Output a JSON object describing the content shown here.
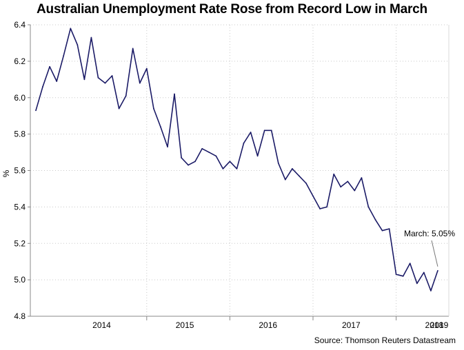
{
  "chart_data": {
    "type": "line",
    "title": "Australian Unemployment Rate Rose from Record Low in March",
    "ylabel": "%",
    "xlabel": "",
    "ylim": [
      4.8,
      6.4
    ],
    "yticks": [
      "4.8",
      "5.0",
      "5.2",
      "5.4",
      "5.6",
      "5.8",
      "6.0",
      "6.2",
      "6.4"
    ],
    "xticks": [
      "2014",
      "2015",
      "2016",
      "2017",
      "2018",
      "2019"
    ],
    "grid": true,
    "annotation": "March: 5.05%",
    "source": "Source: Thomson Reuters Datastream",
    "line_color": "#1a1a66",
    "series": [
      {
        "name": "Unemployment rate",
        "start": "2013-09",
        "values": [
          5.93,
          6.06,
          6.17,
          6.09,
          6.23,
          6.38,
          6.29,
          6.1,
          6.33,
          6.11,
          6.08,
          6.12,
          5.94,
          6.01,
          6.27,
          6.08,
          6.16,
          5.94,
          5.84,
          5.73,
          6.02,
          5.67,
          5.63,
          5.65,
          5.72,
          5.7,
          5.68,
          5.61,
          5.65,
          5.61,
          5.75,
          5.81,
          5.68,
          5.82,
          5.82,
          5.64,
          5.55,
          5.61,
          5.57,
          5.53,
          5.46,
          5.39,
          5.4,
          5.58,
          5.51,
          5.54,
          5.49,
          5.56,
          5.4,
          5.33,
          5.27,
          5.28,
          5.03,
          5.02,
          5.09,
          4.98,
          5.04,
          4.94,
          5.05
        ]
      }
    ]
  }
}
